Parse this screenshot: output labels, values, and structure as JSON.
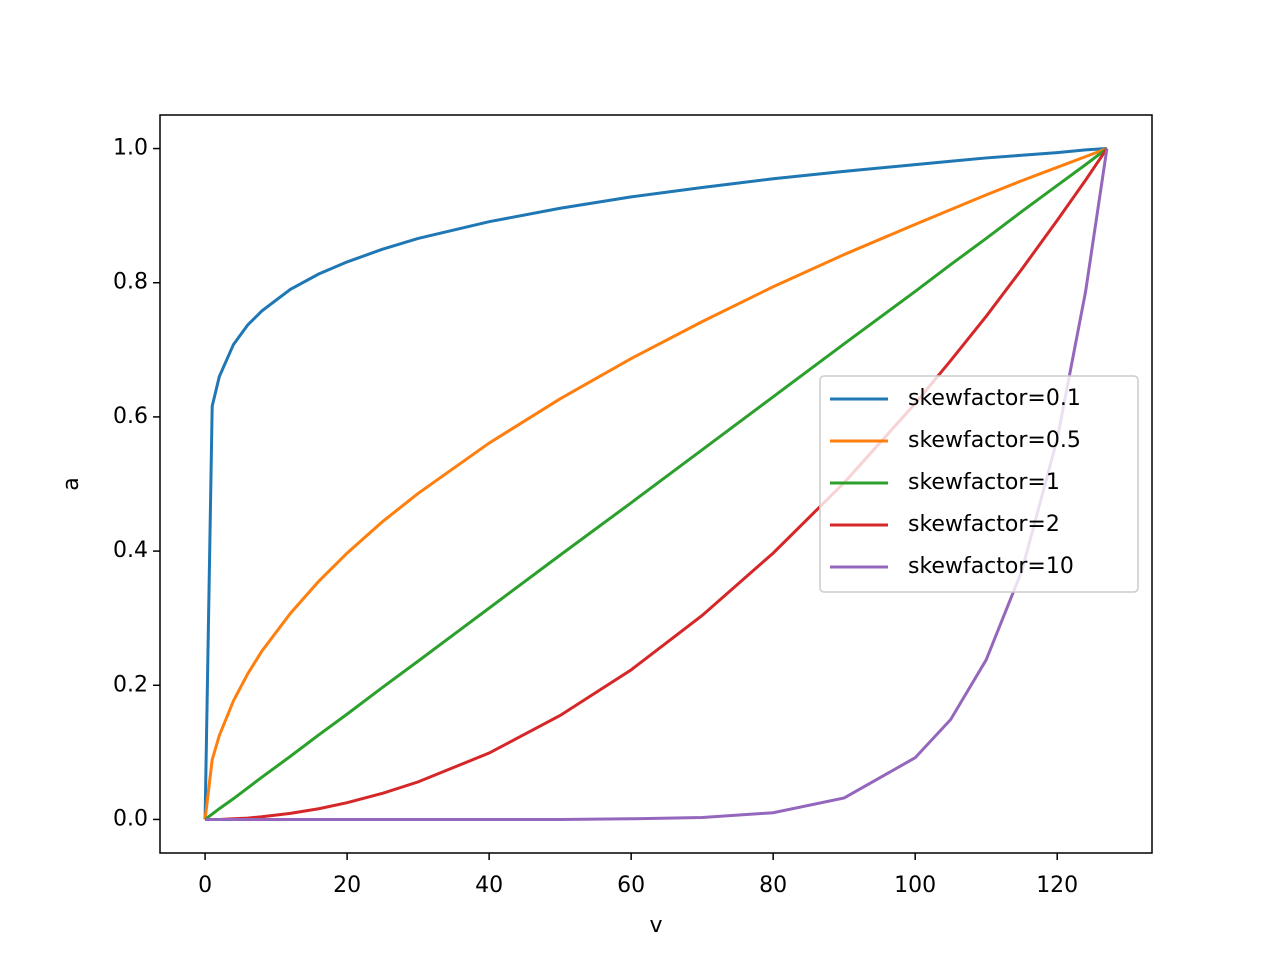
{
  "chart_data": {
    "type": "line",
    "x_label": "v",
    "y_label": "a",
    "x": [
      0,
      1,
      2,
      4,
      6,
      8,
      12,
      16,
      20,
      25,
      30,
      40,
      50,
      60,
      70,
      80,
      90,
      100,
      105,
      110,
      115,
      120,
      124,
      127
    ],
    "series": [
      {
        "name": "skewfactor=0.1",
        "color": "#1f77b4",
        "values": [
          0,
          0.616,
          0.66,
          0.708,
          0.737,
          0.758,
          0.79,
          0.813,
          0.831,
          0.85,
          0.866,
          0.891,
          0.911,
          0.928,
          0.942,
          0.955,
          0.966,
          0.976,
          0.981,
          0.986,
          0.99,
          0.994,
          0.998,
          1
        ]
      },
      {
        "name": "skewfactor=0.5",
        "color": "#ff7f0e",
        "values": [
          0,
          0.089,
          0.125,
          0.177,
          0.217,
          0.251,
          0.307,
          0.355,
          0.397,
          0.444,
          0.486,
          0.561,
          0.627,
          0.687,
          0.742,
          0.794,
          0.842,
          0.887,
          0.909,
          0.931,
          0.952,
          0.972,
          0.988,
          1
        ]
      },
      {
        "name": "skewfactor=1",
        "color": "#2ca02c",
        "values": [
          0,
          0.008,
          0.016,
          0.031,
          0.047,
          0.063,
          0.094,
          0.126,
          0.157,
          0.197,
          0.236,
          0.315,
          0.394,
          0.472,
          0.551,
          0.63,
          0.709,
          0.787,
          0.827,
          0.866,
          0.906,
          0.945,
          0.976,
          1
        ]
      },
      {
        "name": "skewfactor=2",
        "color": "#d62728",
        "values": [
          0,
          0,
          0,
          0.001,
          0.002,
          0.004,
          0.009,
          0.016,
          0.025,
          0.039,
          0.056,
          0.099,
          0.155,
          0.223,
          0.304,
          0.397,
          0.502,
          0.62,
          0.684,
          0.75,
          0.82,
          0.893,
          0.953,
          1
        ]
      },
      {
        "name": "skewfactor=10",
        "color": "#9467bd",
        "values": [
          0,
          0,
          0,
          0,
          0,
          0,
          0,
          0,
          0,
          0,
          0,
          0,
          0,
          0.001,
          0.003,
          0.01,
          0.032,
          0.092,
          0.149,
          0.238,
          0.37,
          0.567,
          0.787,
          1
        ]
      }
    ],
    "xlim": [
      -6.35,
      133.35
    ],
    "ylim": [
      -0.05,
      1.05
    ],
    "xticks": [
      0,
      20,
      40,
      60,
      80,
      100,
      120
    ],
    "yticks": [
      {
        "value": 0,
        "label": "0.0"
      },
      {
        "value": 0.2,
        "label": "0.2"
      },
      {
        "value": 0.4,
        "label": "0.4"
      },
      {
        "value": 0.6,
        "label": "0.6"
      },
      {
        "value": 0.8,
        "label": "0.8"
      },
      {
        "value": 1,
        "label": "1.0"
      }
    ],
    "legend": "center right"
  }
}
